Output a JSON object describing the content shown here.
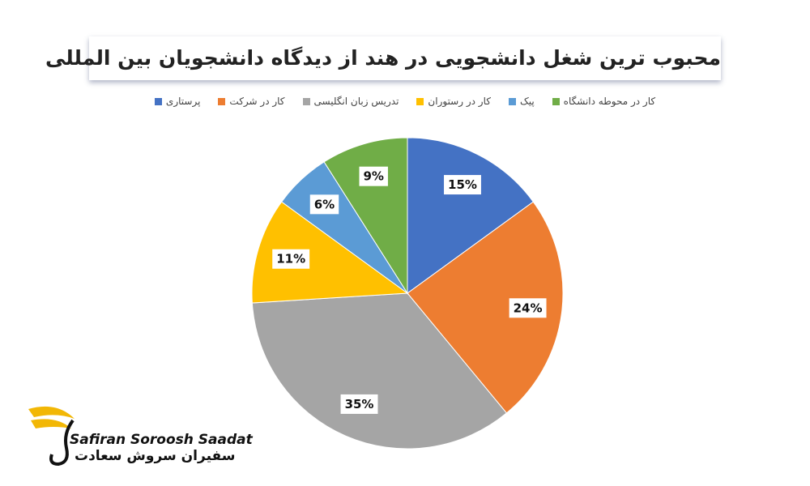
{
  "chart_data": {
    "type": "pie",
    "title": "محبوب ترین شغل دانشجویی در هند از دیدگاه دانشجویان بین المللی",
    "categories": [
      "پرستاری",
      "کار در شرکت",
      "تدریس زبان انگلیسی",
      "کار در رستوران",
      "پیک",
      "کار در محوطه دانشگاه"
    ],
    "values": [
      15,
      24,
      35,
      11,
      6,
      9
    ],
    "value_labels": [
      "15%",
      "24%",
      "35%",
      "11%",
      "6%",
      "9%"
    ],
    "colors": [
      "#4472c4",
      "#ed7d31",
      "#a5a5a5",
      "#ffc000",
      "#5b9bd5",
      "#70ad47"
    ]
  },
  "logo": {
    "latin": "Safiran Soroosh Saadat",
    "persian": "سفیران سروش سعادت"
  }
}
